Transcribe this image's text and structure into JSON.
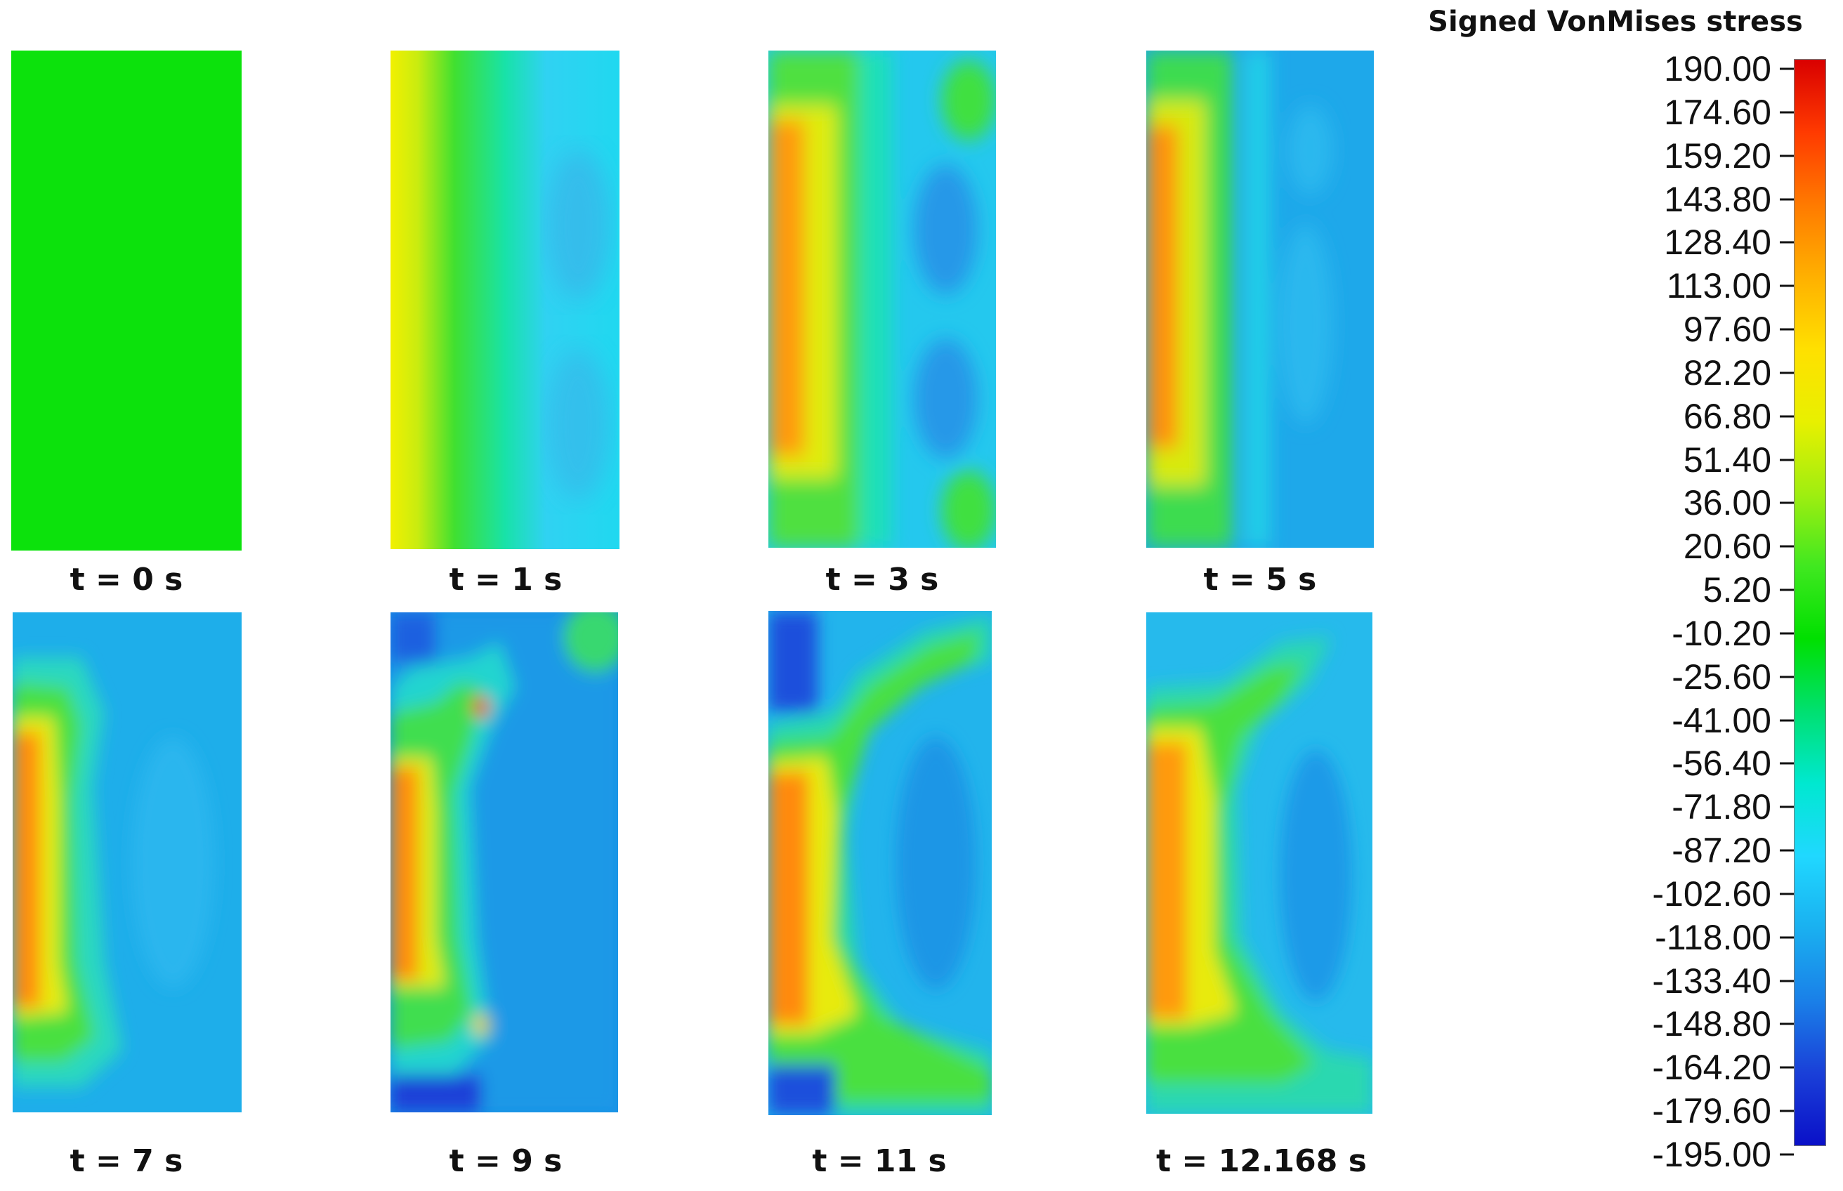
{
  "legend": {
    "title": "Signed VonMises stress",
    "ticks": [
      "190.00",
      "174.60",
      "159.20",
      "143.80",
      "128.40",
      "113.00",
      "97.60",
      "82.20",
      "66.80",
      "51.40",
      "36.00",
      "20.60",
      "5.20",
      "-10.20",
      "-25.60",
      "-41.00",
      "-56.40",
      "-71.80",
      "-87.20",
      "-102.60",
      "-118.00",
      "-133.40",
      "-148.80",
      "-164.20",
      "-179.60",
      "-195.00"
    ],
    "colors": [
      "#d90000",
      "#ff3a00",
      "#ff7a00",
      "#ffb000",
      "#ffe000",
      "#e8f000",
      "#a0ee10",
      "#40e820",
      "#00e000",
      "#00e070",
      "#00e8d0",
      "#20d8ff",
      "#1ab0f0",
      "#1a80e8",
      "#1a40d8",
      "#0a10c8"
    ]
  },
  "panels": [
    {
      "caption": "t = 0 s"
    },
    {
      "caption": "t = 1 s"
    },
    {
      "caption": "t = 3 s"
    },
    {
      "caption": "t = 5 s"
    },
    {
      "caption": "t = 7 s"
    },
    {
      "caption": "t = 9 s"
    },
    {
      "caption": "t = 11 s"
    },
    {
      "caption": "t = 12.168 s"
    }
  ]
}
